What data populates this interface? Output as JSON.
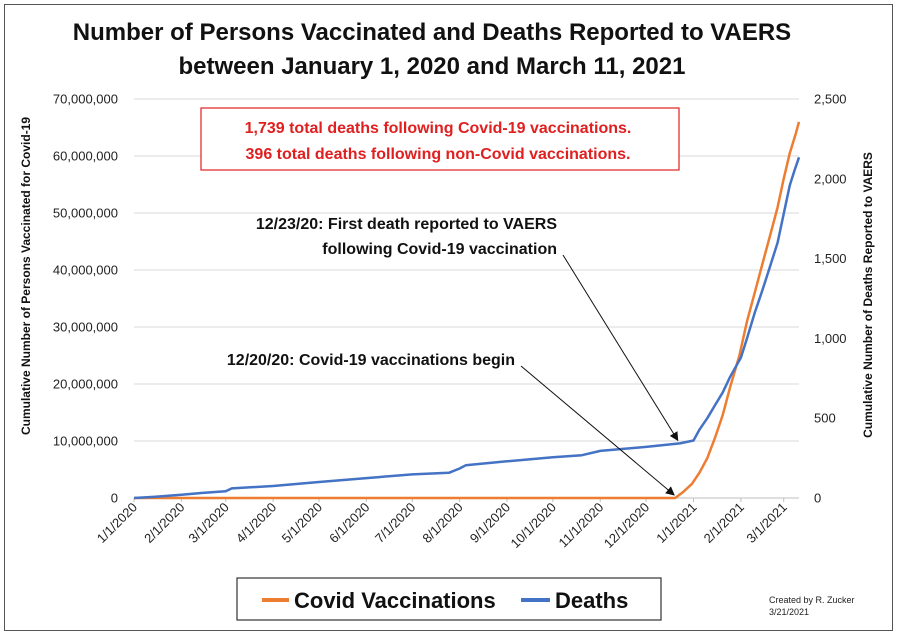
{
  "chart_data": {
    "type": "line",
    "title_line1": "Number of Persons Vaccinated and Deaths Reported to VAERS",
    "title_line2": "between January 1, 2020 and March 11, 2021",
    "ylabel_left": "Cumulative Number of Persons Vaccinated for Covid-19",
    "ylabel_right": "Cumulative  Number of Deaths Reported to VAERS",
    "ylim_left": [
      0,
      70000000
    ],
    "ylim_right": [
      0,
      2500
    ],
    "yticks_left": [
      "0",
      "10,000,000",
      "20,000,000",
      "30,000,000",
      "40,000,000",
      "50,000,000",
      "60,000,000",
      "70,000,000"
    ],
    "yticks_right": [
      "0",
      "500",
      "1,000",
      "1,500",
      "2,000",
      "2,500"
    ],
    "x_date_range": [
      "2020-01-01",
      "2021-03-11"
    ],
    "xticks": [
      "1/1/2020",
      "2/1/2020",
      "3/1/2020",
      "4/1/2020",
      "5/1/2020",
      "6/1/2020",
      "7/1/2020",
      "8/1/2020",
      "9/1/2020",
      "10/1/2020",
      "11/1/2020",
      "12/1/2020",
      "1/1/2021",
      "2/1/2021",
      "3/1/2021"
    ],
    "grid": true,
    "legend_position": "bottom",
    "series": [
      {
        "name": "Covid Vaccinations",
        "axis": "left",
        "color": "#ed7d31",
        "points": [
          [
            "2020-01-01",
            0
          ],
          [
            "2020-12-20",
            0
          ],
          [
            "2020-12-25",
            1000000
          ],
          [
            "2020-12-31",
            2500000
          ],
          [
            "2021-01-05",
            4500000
          ],
          [
            "2021-01-10",
            7000000
          ],
          [
            "2021-01-15",
            10500000
          ],
          [
            "2021-01-20",
            14500000
          ],
          [
            "2021-01-25",
            19500000
          ],
          [
            "2021-01-31",
            25000000
          ],
          [
            "2021-02-05",
            31000000
          ],
          [
            "2021-02-10",
            36000000
          ],
          [
            "2021-02-15",
            41000000
          ],
          [
            "2021-02-20",
            46000000
          ],
          [
            "2021-02-25",
            51000000
          ],
          [
            "2021-03-01",
            56000000
          ],
          [
            "2021-03-05",
            60500000
          ],
          [
            "2021-03-09",
            64000000
          ],
          [
            "2021-03-11",
            66000000
          ]
        ]
      },
      {
        "name": "Deaths",
        "axis": "right",
        "color": "#4472c4",
        "points": [
          [
            "2020-01-01",
            0
          ],
          [
            "2020-01-15",
            8
          ],
          [
            "2020-02-01",
            20
          ],
          [
            "2020-02-15",
            32
          ],
          [
            "2020-03-01",
            42
          ],
          [
            "2020-03-05",
            60
          ],
          [
            "2020-04-01",
            75
          ],
          [
            "2020-05-01",
            100
          ],
          [
            "2020-06-01",
            125
          ],
          [
            "2020-07-01",
            148
          ],
          [
            "2020-07-25",
            158
          ],
          [
            "2020-08-01",
            185
          ],
          [
            "2020-08-05",
            205
          ],
          [
            "2020-09-01",
            230
          ],
          [
            "2020-10-01",
            255
          ],
          [
            "2020-10-20",
            268
          ],
          [
            "2020-11-01",
            295
          ],
          [
            "2020-12-01",
            320
          ],
          [
            "2020-12-23",
            342
          ],
          [
            "2021-01-01",
            360
          ],
          [
            "2021-01-05",
            430
          ],
          [
            "2021-01-10",
            500
          ],
          [
            "2021-01-15",
            580
          ],
          [
            "2021-01-20",
            660
          ],
          [
            "2021-01-25",
            760
          ],
          [
            "2021-02-01",
            880
          ],
          [
            "2021-02-05",
            1000
          ],
          [
            "2021-02-10",
            1160
          ],
          [
            "2021-02-15",
            1300
          ],
          [
            "2021-02-20",
            1450
          ],
          [
            "2021-02-25",
            1600
          ],
          [
            "2021-03-01",
            1780
          ],
          [
            "2021-03-05",
            1960
          ],
          [
            "2021-03-08",
            2050
          ],
          [
            "2021-03-11",
            2135
          ]
        ]
      }
    ],
    "annotations": [
      {
        "lines": [
          "1,739 total deaths following Covid-19 vaccinations.",
          "396 total deaths following non-Covid vaccinations."
        ],
        "boxed": true,
        "color": "#e02020"
      },
      {
        "lines": [
          "12/23/20:  First death reported to VAERS",
          "following Covid-19 vaccination"
        ],
        "arrow_to": [
          "2020-12-23",
          342,
          "right"
        ]
      },
      {
        "lines": [
          "12/20/20:  Covid-19 vaccinations begin"
        ],
        "arrow_to": [
          "2020-12-20",
          0,
          "left"
        ]
      }
    ],
    "credit_lines": [
      "Created by R. Zucker",
      "3/21/2021"
    ]
  }
}
